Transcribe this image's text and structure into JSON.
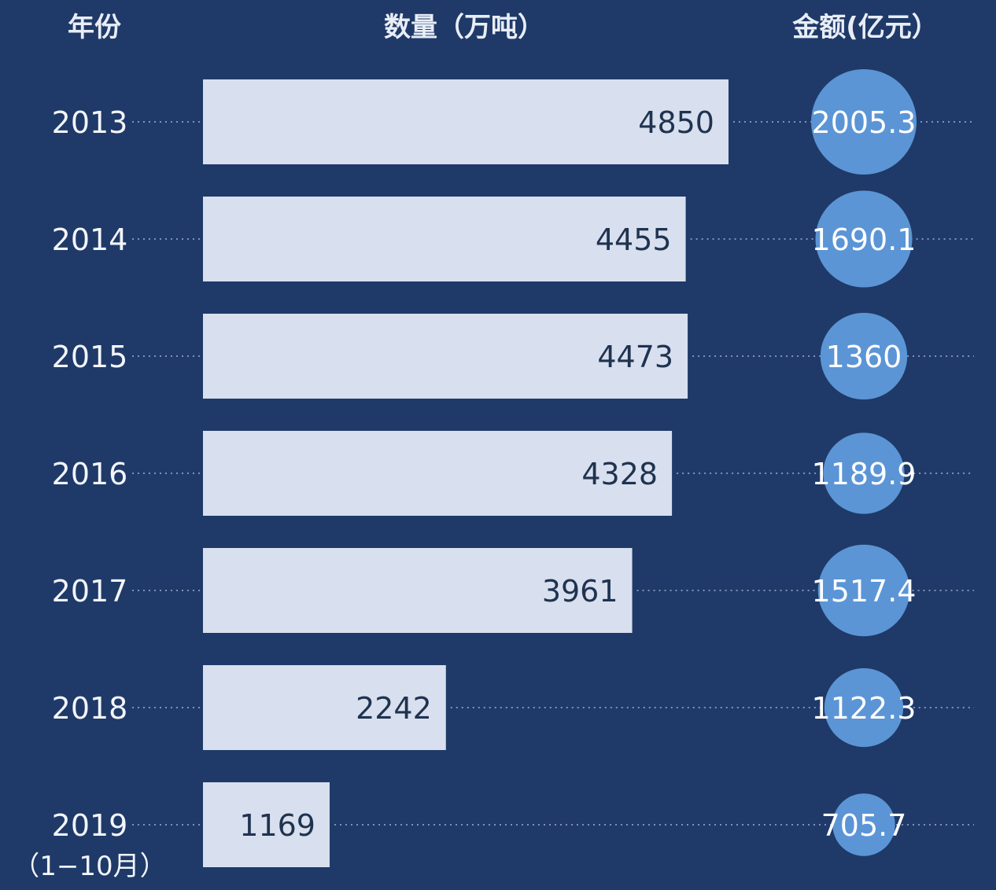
{
  "chart_data": {
    "type": "bar",
    "headers": {
      "year": "年份",
      "quantity": "数量（万吨）",
      "amount": "金额(亿元）"
    },
    "categories": [
      "2013",
      "2014",
      "2015",
      "2016",
      "2017",
      "2018",
      "2019"
    ],
    "category_notes": [
      "",
      "",
      "",
      "",
      "",
      "",
      "（1−10月）"
    ],
    "series": [
      {
        "name": "数量（万吨）",
        "values": [
          4850,
          4455,
          4473,
          4328,
          3961,
          2242,
          1169
        ],
        "display": [
          "4850",
          "4455",
          "4473",
          "4328",
          "3961",
          "2242",
          "1169"
        ],
        "mark": "bar"
      },
      {
        "name": "金额(亿元）",
        "values": [
          2005.3,
          1690.1,
          1360,
          1189.9,
          1517.4,
          1122.3,
          705.7
        ],
        "display": [
          "2005.3",
          "1690.1",
          "1360",
          "1189.9",
          "1517.4",
          "1122.3",
          "705.7"
        ],
        "mark": "circle"
      }
    ],
    "grid": false,
    "colors": {
      "background": "#1f3a68",
      "bar": "#d8dfee",
      "bar_label": "#1f3350",
      "circle": "#5b95d6",
      "text": "#f2f5fa",
      "dotted_line": "#7f93b8"
    }
  }
}
